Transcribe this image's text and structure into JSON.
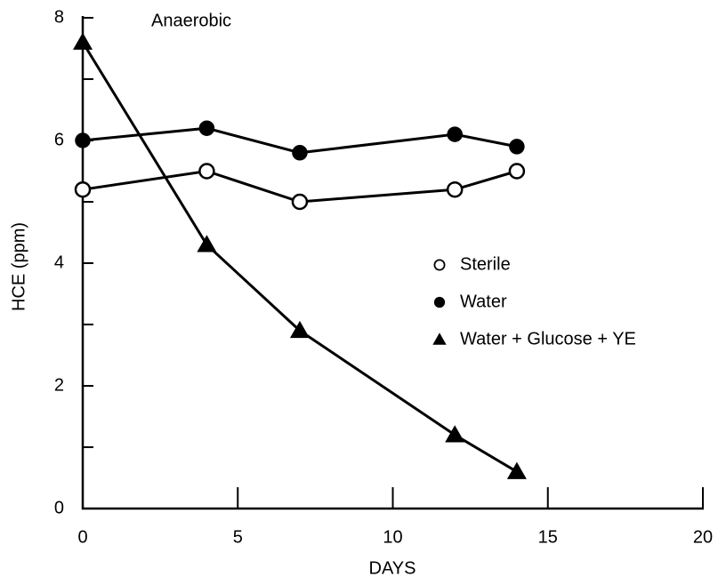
{
  "chart_data": {
    "type": "line",
    "annotation": "Anaerobic",
    "xlabel": "DAYS",
    "ylabel": "HCE (ppm)",
    "x": [
      0,
      4,
      7,
      12,
      14
    ],
    "series": [
      {
        "name": "Sterile",
        "color": "#000000",
        "marker": "open-circle",
        "values": [
          5.2,
          5.5,
          5.0,
          5.2,
          5.5
        ]
      },
      {
        "name": "Water",
        "color": "#000000",
        "marker": "filled-circle",
        "values": [
          6.0,
          6.2,
          5.8,
          6.1,
          5.9
        ]
      },
      {
        "name": "Water + Glucose + YE",
        "color": "#000000",
        "marker": "triangle",
        "values": [
          7.6,
          4.3,
          2.9,
          1.2,
          0.6
        ]
      }
    ],
    "xlim": [
      0,
      20
    ],
    "xticks": [
      0,
      5,
      10,
      15,
      20
    ],
    "ylim": [
      0,
      8
    ],
    "yticks": [
      0,
      2,
      4,
      6,
      8
    ],
    "yminorticks": [
      1,
      3,
      5,
      7
    ],
    "grid": false
  }
}
